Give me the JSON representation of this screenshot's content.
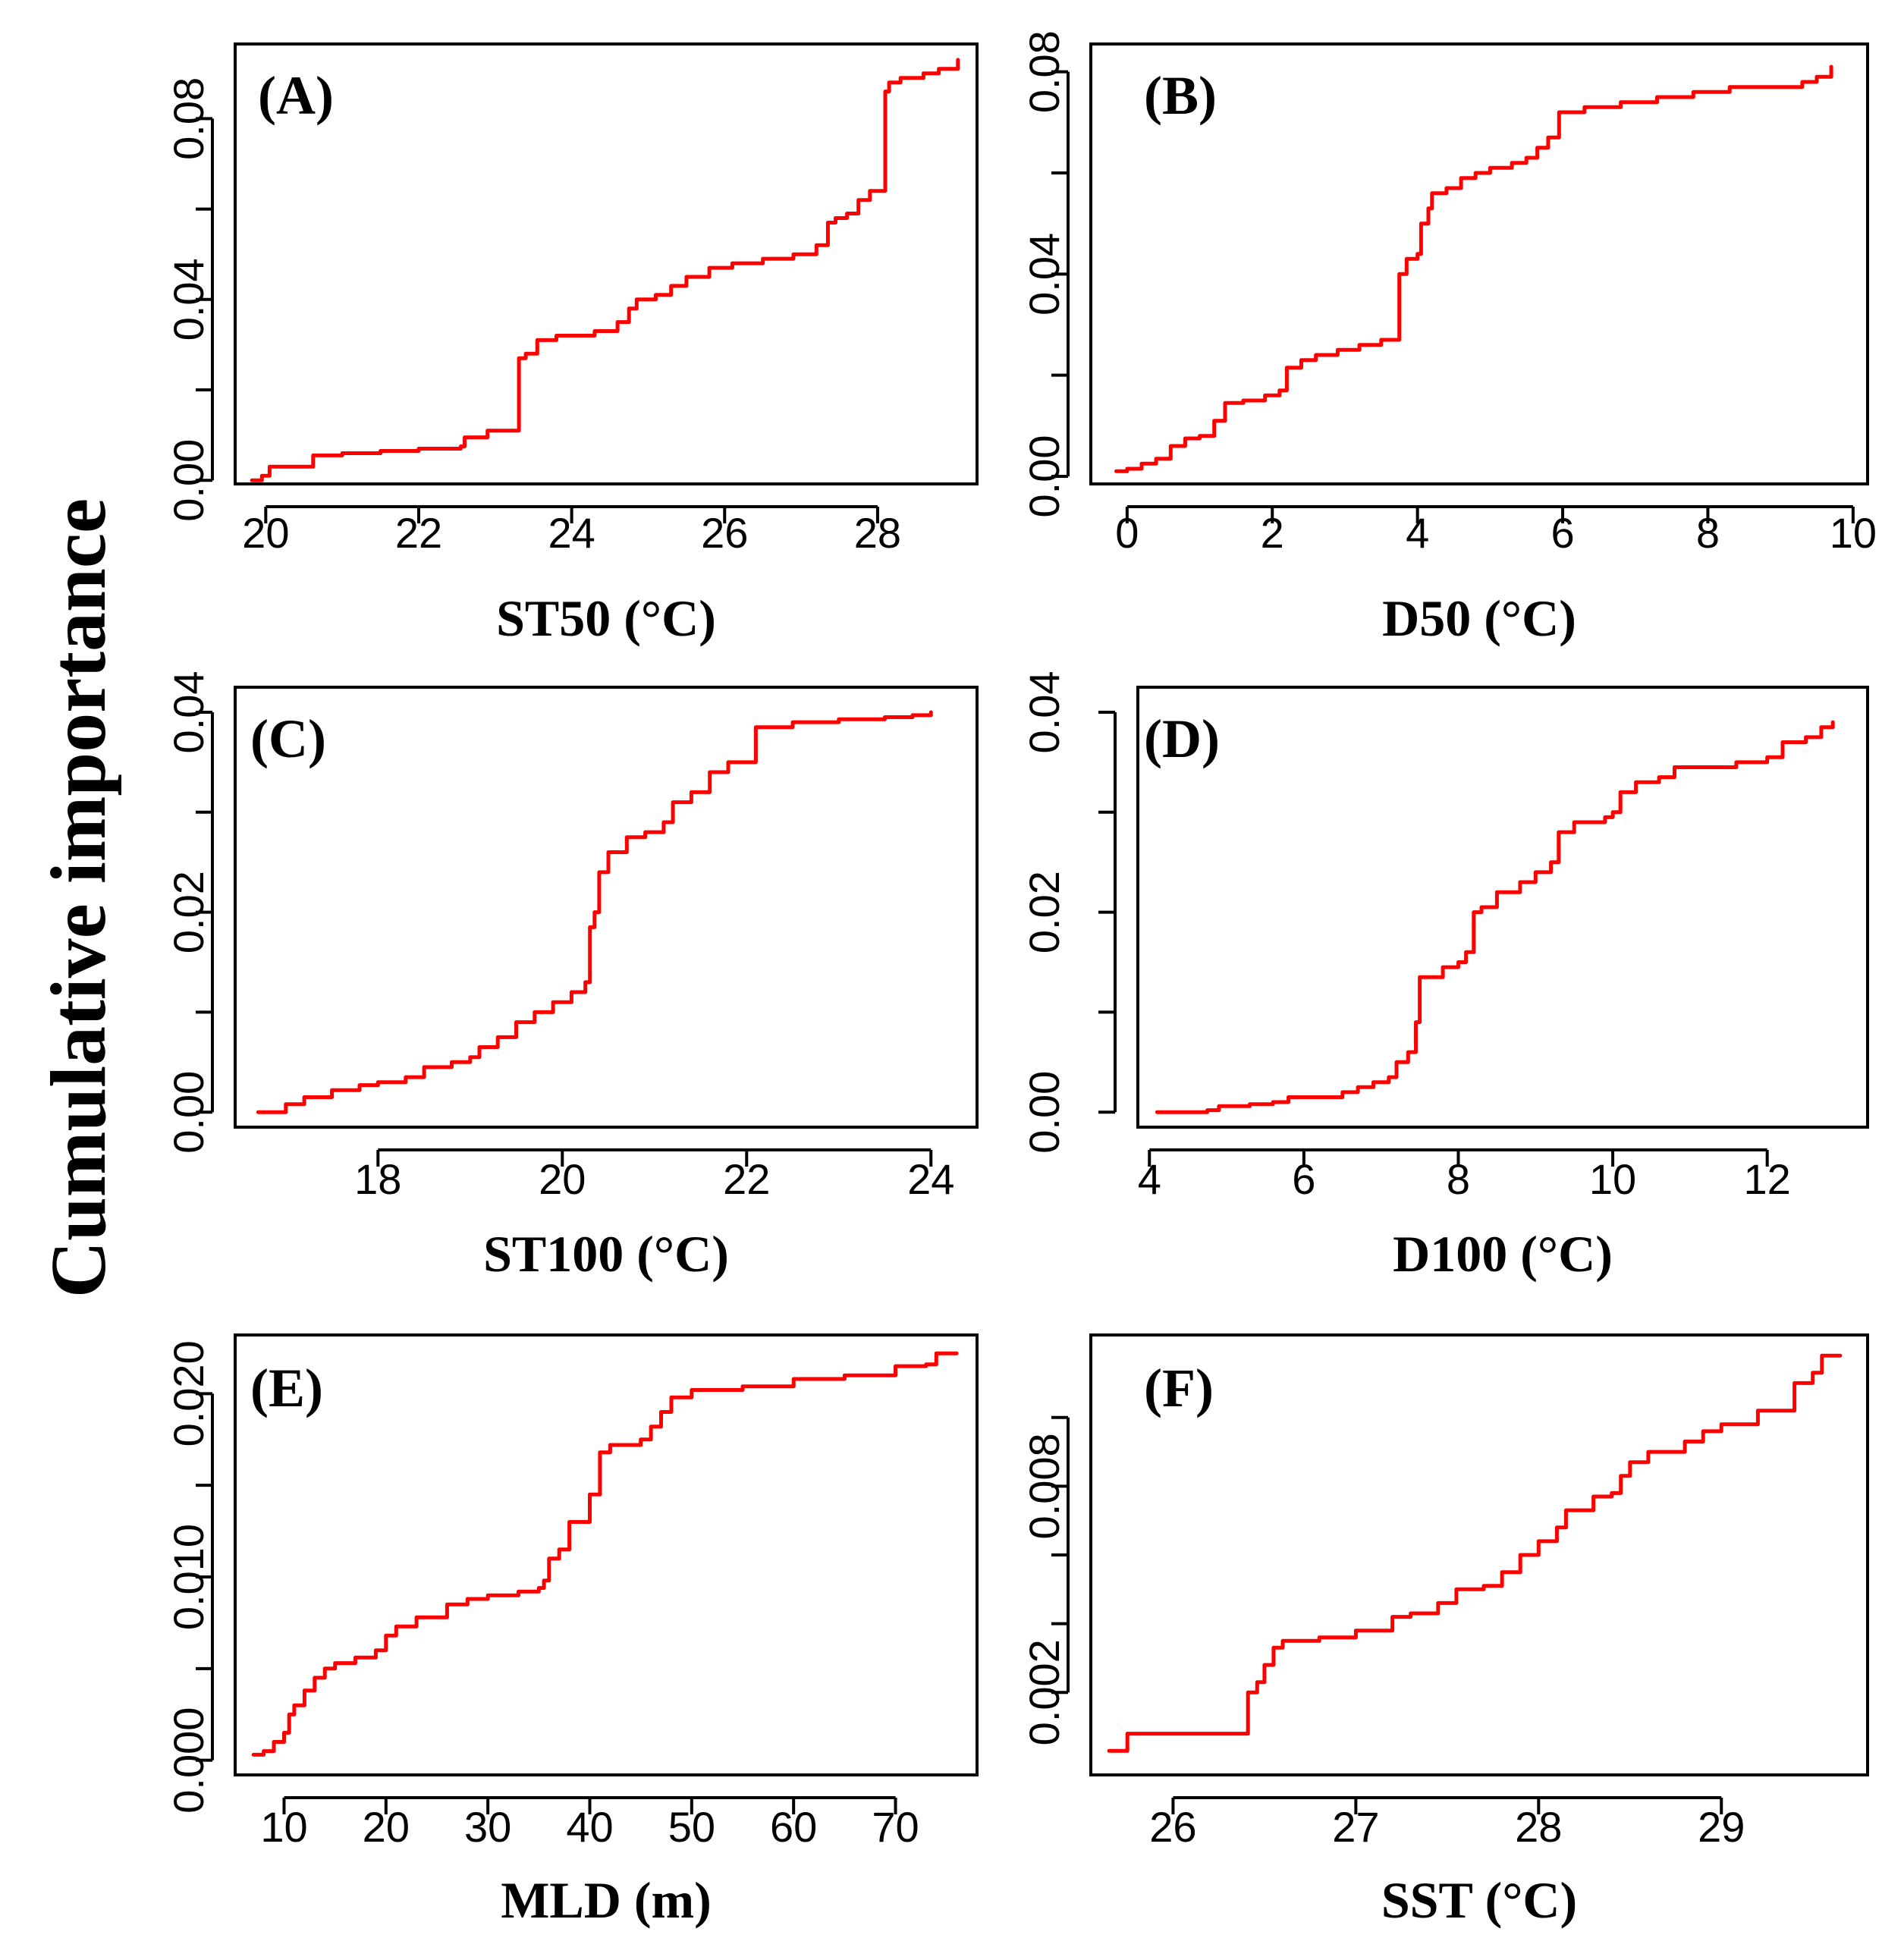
{
  "figure": {
    "y_title": "Cumulative importance",
    "line_color": "#ff0000"
  },
  "chart_data": [
    {
      "type": "line",
      "panel_label": "(A)",
      "xlabel": "ST50 (°C)",
      "ylabel": "Cumulative importance",
      "xlim": [
        19.6,
        29.3
      ],
      "ylim": [
        -0.0008,
        0.0965
      ],
      "xticks": [
        20,
        22,
        24,
        26,
        28
      ],
      "yticks": [
        0.0,
        0.04,
        0.08
      ],
      "ytick_labels": [
        "0.00",
        "0.04",
        "0.08"
      ],
      "ytick_minor": [
        0.02,
        0.06
      ],
      "series": [
        {
          "name": "ST50",
          "x": [
            19.82,
            19.95,
            20.05,
            20.2,
            20.45,
            20.62,
            21.0,
            21.5,
            22.0,
            22.55,
            22.6,
            22.8,
            22.9,
            23.05,
            23.3,
            23.31,
            23.4,
            23.55,
            23.8,
            24.0,
            24.3,
            24.6,
            24.75,
            24.85,
            25.1,
            25.3,
            25.5,
            25.8,
            26.1,
            26.5,
            26.9,
            27.2,
            27.35,
            27.45,
            27.6,
            27.75,
            27.9,
            28.05,
            28.1,
            28.15,
            28.3,
            28.6,
            28.8,
            29.0,
            29.05
          ],
          "values": [
            0.0,
            0.001,
            0.003,
            0.003,
            0.003,
            0.0055,
            0.006,
            0.0065,
            0.007,
            0.0075,
            0.0095,
            0.0095,
            0.011,
            0.011,
            0.011,
            0.027,
            0.028,
            0.031,
            0.032,
            0.032,
            0.033,
            0.035,
            0.038,
            0.04,
            0.041,
            0.043,
            0.045,
            0.047,
            0.048,
            0.049,
            0.05,
            0.052,
            0.057,
            0.058,
            0.059,
            0.062,
            0.064,
            0.064,
            0.086,
            0.088,
            0.089,
            0.09,
            0.091,
            0.091,
            0.093
          ]
        }
      ]
    },
    {
      "type": "line",
      "panel_label": "(B)",
      "xlabel": "D50 (°C)",
      "ylabel": "Cumulative importance",
      "xlim": [
        -0.5,
        10.2
      ],
      "ylim": [
        -0.0015,
        0.0855
      ],
      "xticks": [
        0,
        2,
        4,
        6,
        8,
        10
      ],
      "yticks": [
        0.0,
        0.04,
        0.08
      ],
      "ytick_labels": [
        "0.00",
        "0.04",
        "0.08"
      ],
      "ytick_minor": [
        0.02,
        0.06
      ],
      "series": [
        {
          "name": "D50",
          "x": [
            -0.15,
            0.0,
            0.2,
            0.4,
            0.6,
            0.8,
            1.0,
            1.2,
            1.35,
            1.6,
            1.9,
            2.1,
            2.2,
            2.4,
            2.6,
            2.9,
            3.2,
            3.5,
            3.72,
            3.75,
            3.85,
            4.0,
            4.05,
            4.15,
            4.2,
            4.4,
            4.6,
            4.8,
            5.0,
            5.3,
            5.5,
            5.65,
            5.8,
            5.95,
            6.3,
            6.8,
            7.3,
            7.8,
            8.3,
            8.8,
            9.3,
            9.5,
            9.7
          ],
          "values": [
            0.001,
            0.0015,
            0.0025,
            0.0035,
            0.006,
            0.0075,
            0.008,
            0.011,
            0.0145,
            0.015,
            0.016,
            0.017,
            0.0215,
            0.023,
            0.024,
            0.025,
            0.026,
            0.027,
            0.027,
            0.04,
            0.043,
            0.044,
            0.05,
            0.053,
            0.056,
            0.057,
            0.059,
            0.06,
            0.061,
            0.062,
            0.063,
            0.065,
            0.067,
            0.072,
            0.073,
            0.074,
            0.075,
            0.076,
            0.077,
            0.077,
            0.078,
            0.079,
            0.081
          ]
        }
      ]
    },
    {
      "type": "line",
      "panel_label": "(C)",
      "xlabel": "ST100 (°C)",
      "ylabel": "Cumulative importance",
      "xlim": [
        16.45,
        24.5
      ],
      "ylim": [
        -0.0015,
        0.0425
      ],
      "xticks": [
        18,
        20,
        22,
        24
      ],
      "yticks": [
        0.0,
        0.02,
        0.04
      ],
      "ytick_labels": [
        "0.00",
        "0.02",
        "0.04"
      ],
      "ytick_minor": [
        0.01,
        0.03
      ],
      "series": [
        {
          "name": "ST100",
          "x": [
            16.7,
            16.9,
            17.0,
            17.2,
            17.5,
            17.8,
            18.0,
            18.3,
            18.5,
            18.8,
            19.0,
            19.1,
            19.3,
            19.5,
            19.7,
            19.9,
            20.1,
            20.25,
            20.3,
            20.35,
            20.4,
            20.5,
            20.7,
            20.9,
            21.1,
            21.2,
            21.4,
            21.6,
            21.8,
            22.0,
            22.1,
            22.5,
            23.0,
            23.5,
            23.8,
            24.0
          ],
          "values": [
            0.0,
            0.0,
            0.0008,
            0.0015,
            0.0022,
            0.0027,
            0.003,
            0.0035,
            0.0045,
            0.005,
            0.0055,
            0.0065,
            0.0075,
            0.009,
            0.01,
            0.011,
            0.012,
            0.013,
            0.0185,
            0.02,
            0.024,
            0.026,
            0.0275,
            0.028,
            0.029,
            0.031,
            0.032,
            0.034,
            0.035,
            0.035,
            0.0385,
            0.039,
            0.0393,
            0.0395,
            0.0397,
            0.04
          ]
        }
      ]
    },
    {
      "type": "line",
      "panel_label": "(D)",
      "xlabel": "D100 (°C)",
      "ylabel": "Cumulative importance",
      "xlim": [
        3.85,
        13.3
      ],
      "ylim": [
        -0.0015,
        0.0425
      ],
      "xticks": [
        4,
        6,
        8,
        10,
        12
      ],
      "yticks": [
        0.0,
        0.02,
        0.04
      ],
      "ytick_labels": [
        "0.00",
        "0.02",
        "0.04"
      ],
      "ytick_minor": [
        0.01,
        0.03
      ],
      "series": [
        {
          "name": "D100",
          "x": [
            4.1,
            4.5,
            4.75,
            4.9,
            5.3,
            5.6,
            5.8,
            6.1,
            6.3,
            6.5,
            6.7,
            6.9,
            7.1,
            7.2,
            7.35,
            7.45,
            7.5,
            7.6,
            7.8,
            8.0,
            8.1,
            8.2,
            8.3,
            8.5,
            8.8,
            9.0,
            9.2,
            9.3,
            9.5,
            9.7,
            9.9,
            10.0,
            10.1,
            10.3,
            10.6,
            10.8,
            11.2,
            11.6,
            12.0,
            12.2,
            12.5,
            12.7,
            12.85
          ],
          "values": [
            0.0,
            0.0,
            0.0002,
            0.0006,
            0.0008,
            0.001,
            0.0015,
            0.0015,
            0.0015,
            0.002,
            0.0025,
            0.003,
            0.0035,
            0.005,
            0.006,
            0.009,
            0.0135,
            0.0135,
            0.0145,
            0.015,
            0.016,
            0.02,
            0.0205,
            0.022,
            0.023,
            0.024,
            0.025,
            0.028,
            0.029,
            0.029,
            0.0295,
            0.03,
            0.032,
            0.033,
            0.0335,
            0.0345,
            0.0345,
            0.035,
            0.0355,
            0.037,
            0.0375,
            0.0385,
            0.039
          ]
        }
      ]
    },
    {
      "type": "line",
      "panel_label": "(E)",
      "xlabel": "MLD (m)",
      "ylabel": "Cumulative importance",
      "xlim": [
        5.2,
        78.0
      ],
      "ylim": [
        -0.0008,
        0.0232
      ],
      "xticks": [
        10,
        20,
        30,
        40,
        50,
        60,
        70
      ],
      "yticks": [
        0.0,
        0.01,
        0.02
      ],
      "ytick_labels": [
        "0.000",
        "0.010",
        "0.020"
      ],
      "ytick_minor": [
        0.005,
        0.015
      ],
      "series": [
        {
          "name": "MLD",
          "x": [
            7.0,
            8.0,
            9.0,
            10.0,
            10.5,
            11.0,
            12.0,
            13.0,
            14.0,
            15.0,
            17.0,
            19.0,
            20.0,
            21.0,
            23.0,
            26.0,
            28.0,
            30.0,
            33.0,
            35.0,
            35.5,
            36.0,
            37.0,
            38.0,
            39.0,
            40.0,
            41.0,
            42.0,
            45.0,
            46.0,
            47.0,
            48.0,
            50.0,
            55.0,
            60.0,
            65.0,
            70.0,
            73.0,
            74.0,
            76.0
          ],
          "values": [
            0.0003,
            0.0005,
            0.001,
            0.0015,
            0.0025,
            0.003,
            0.0038,
            0.0045,
            0.005,
            0.0053,
            0.0056,
            0.006,
            0.0068,
            0.0073,
            0.0078,
            0.0085,
            0.0088,
            0.009,
            0.0092,
            0.0094,
            0.0098,
            0.011,
            0.0115,
            0.013,
            0.013,
            0.0145,
            0.0168,
            0.0172,
            0.0175,
            0.0182,
            0.019,
            0.0198,
            0.0202,
            0.0204,
            0.0208,
            0.021,
            0.0215,
            0.0216,
            0.0222,
            0.0222
          ]
        }
      ]
    },
    {
      "type": "line",
      "panel_label": "(F)",
      "xlabel": "SST (°C)",
      "ylabel": "Cumulative importance",
      "xlim": [
        25.55,
        29.8
      ],
      "ylim": [
        -0.0004,
        0.0124
      ],
      "xticks": [
        26,
        27,
        28,
        29
      ],
      "yticks": [
        0.002,
        0.008
      ],
      "ytick_labels": [
        "0.002",
        "0.008"
      ],
      "ytick_minor": [
        0.004,
        0.006,
        0.01
      ],
      "series": [
        {
          "name": "SST",
          "x": [
            25.65,
            25.72,
            25.75,
            26.0,
            26.38,
            26.41,
            26.46,
            26.5,
            26.55,
            26.6,
            26.8,
            27.0,
            27.2,
            27.3,
            27.45,
            27.55,
            27.7,
            27.8,
            27.9,
            28.0,
            28.1,
            28.15,
            28.3,
            28.4,
            28.45,
            28.5,
            28.6,
            28.8,
            28.9,
            29.0,
            29.2,
            29.4,
            29.5,
            29.55,
            29.65
          ],
          "values": [
            0.0003,
            0.0003,
            0.0008,
            0.0008,
            0.0008,
            0.002,
            0.0023,
            0.0028,
            0.0033,
            0.0035,
            0.0036,
            0.0038,
            0.0042,
            0.0043,
            0.0046,
            0.005,
            0.0051,
            0.0055,
            0.006,
            0.0064,
            0.0068,
            0.0073,
            0.0077,
            0.0078,
            0.0083,
            0.0087,
            0.009,
            0.0093,
            0.0096,
            0.0098,
            0.0102,
            0.011,
            0.0113,
            0.0118,
            0.0118
          ]
        }
      ]
    }
  ]
}
